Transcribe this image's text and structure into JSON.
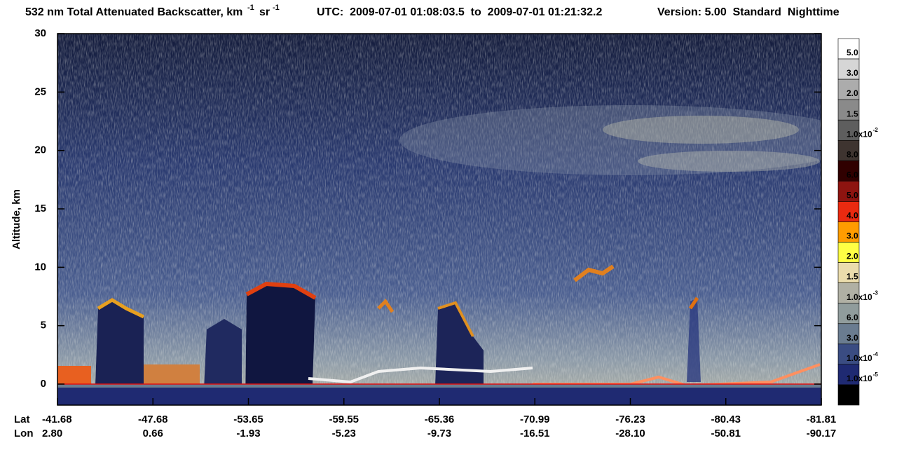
{
  "chart_data": {
    "type": "curtain",
    "title": {
      "quantity": "532 nm Total Attenuated Backscatter, km",
      "exp1": "-1",
      "sr": "sr",
      "exp2": "-1",
      "time": "UTC:  2009-07-01 01:08:03.5  to  2009-07-01 01:21:32.2",
      "version": "Version: 5.00  Standard  Nighttime"
    },
    "y_label": "Altitude, km",
    "ylim": [
      -1.8,
      30
    ],
    "yticks": [
      0,
      5,
      10,
      15,
      20,
      25,
      30
    ],
    "x_row_labels": [
      "Lat",
      "Lon"
    ],
    "lat": [
      "-41.68",
      "-47.68",
      "-53.65",
      "-59.55",
      "-65.36",
      "-70.99",
      "-76.23",
      "-80.43",
      "-81.81"
    ],
    "lon": [
      "2.80",
      "0.66",
      "-1.93",
      "-5.23",
      "-9.73",
      "-16.51",
      "-28.10",
      "-50.81",
      "-90.17"
    ],
    "colorbar": {
      "colors": [
        "#ffffff",
        "#d6d6d6",
        "#acacac",
        "#8a8a8a",
        "#5e5e5e",
        "#3e3430",
        "#300000",
        "#8e1410",
        "#ea2a10",
        "#ff9c00",
        "#ffff44",
        "#eadcac",
        "#b0b0a4",
        "#909c9c",
        "#6a7c90",
        "#3a4c82",
        "#1f2a72",
        "#000000"
      ],
      "labels": [
        "5.0",
        "3.0",
        "2.0",
        "1.5",
        {
          "base": "1.0x10",
          "exp": "-2"
        },
        "8.0",
        "6.0",
        "5.0",
        "4.0",
        "3.0",
        "2.0",
        "1.5",
        {
          "base": "1.0x10",
          "exp": "-3"
        },
        "6.0",
        "3.0",
        {
          "base": "1.0x10",
          "exp": "-4"
        },
        {
          "base": "1.0x10",
          "exp": "-5"
        },
        null
      ]
    }
  }
}
